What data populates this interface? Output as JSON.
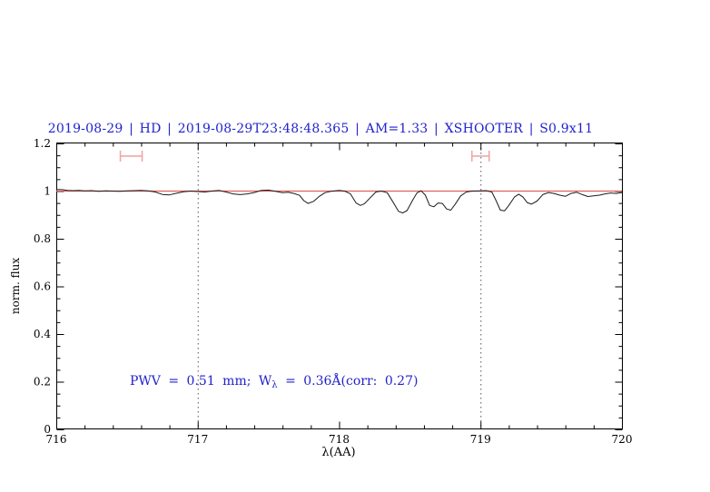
{
  "title": {
    "text": "2019-08-29 | HD | 2019-08-29T23:48:48.365 | AM=1.33 | XSHOOTER | S0.9x11",
    "color": "#2222cc"
  },
  "annotation": {
    "part1": "PWV = 0.51 mm; W",
    "sub": "λ",
    "part2": " = 0.36Å(corr: 0.27)",
    "color": "#2222cc"
  },
  "chart_data": {
    "type": "line",
    "title": "2019-08-29 | HD | 2019-08-29T23:48:48.365 | AM=1.33 | XSHOOTER | S0.9x11",
    "xlabel": "λ(AA)",
    "ylabel": "norm. flux",
    "xlim": [
      716,
      720
    ],
    "ylim": [
      0,
      1.2
    ],
    "x_tick_values": [
      716,
      717,
      718,
      719,
      720
    ],
    "x_tick_labels": [
      "716",
      "717",
      "718",
      "719",
      "720"
    ],
    "x_minor_step": 0.2,
    "y_tick_values": [
      0,
      0.2,
      0.4,
      0.6,
      0.8,
      1.0,
      1.2
    ],
    "y_tick_labels": [
      "0",
      "0.2",
      "0.4",
      "0.6",
      "0.8",
      "1",
      "1.2"
    ],
    "y_minor_step": 0.05,
    "grid": false,
    "reference_vlines": [
      717,
      719
    ],
    "continuum_level": 1.0,
    "colors": {
      "spectrum": "#1c1c1c",
      "continuum": "#e06060",
      "interval_marker": "#f2a6a6",
      "reference_line": "#555555"
    },
    "interval_markers": [
      {
        "x_center": 716.53,
        "half_width": 0.077,
        "flux": 1.147
      },
      {
        "x_center": 719.0,
        "half_width": 0.061,
        "flux": 1.147
      }
    ],
    "series": [
      {
        "name": "observed-spectrum",
        "points": [
          [
            716.0,
            1.007
          ],
          [
            716.04,
            1.006
          ],
          [
            716.08,
            1.003
          ],
          [
            716.12,
            1.002
          ],
          [
            716.16,
            1.003
          ],
          [
            716.2,
            1.001
          ],
          [
            716.25,
            1.002
          ],
          [
            716.3,
            0.999
          ],
          [
            716.35,
            1.001
          ],
          [
            716.4,
            1.0
          ],
          [
            716.45,
            0.999
          ],
          [
            716.5,
            1.001
          ],
          [
            716.55,
            1.002
          ],
          [
            716.6,
            1.003
          ],
          [
            716.65,
            1.001
          ],
          [
            716.7,
            0.996
          ],
          [
            716.75,
            0.986
          ],
          [
            716.8,
            0.984
          ],
          [
            716.85,
            0.991
          ],
          [
            716.9,
            0.997
          ],
          [
            716.95,
            1.0
          ],
          [
            717.0,
            0.998
          ],
          [
            717.05,
            0.996
          ],
          [
            717.1,
            1.0
          ],
          [
            717.15,
            1.003
          ],
          [
            717.2,
            0.996
          ],
          [
            717.25,
            0.988
          ],
          [
            717.3,
            0.985
          ],
          [
            717.35,
            0.988
          ],
          [
            717.4,
            0.994
          ],
          [
            717.45,
            1.003
          ],
          [
            717.5,
            1.004
          ],
          [
            717.55,
            0.999
          ],
          [
            717.6,
            0.993
          ],
          [
            717.64,
            0.995
          ],
          [
            717.68,
            0.99
          ],
          [
            717.72,
            0.982
          ],
          [
            717.75,
            0.96
          ],
          [
            717.78,
            0.948
          ],
          [
            717.82,
            0.957
          ],
          [
            717.86,
            0.978
          ],
          [
            717.9,
            0.993
          ],
          [
            717.94,
            0.999
          ],
          [
            718.0,
            1.003
          ],
          [
            718.04,
            1.0
          ],
          [
            718.08,
            0.988
          ],
          [
            718.12,
            0.95
          ],
          [
            718.15,
            0.94
          ],
          [
            718.18,
            0.947
          ],
          [
            718.22,
            0.972
          ],
          [
            718.26,
            0.996
          ],
          [
            718.3,
            1.0
          ],
          [
            718.34,
            0.993
          ],
          [
            718.38,
            0.955
          ],
          [
            718.42,
            0.915
          ],
          [
            718.45,
            0.908
          ],
          [
            718.48,
            0.918
          ],
          [
            718.52,
            0.962
          ],
          [
            718.55,
            0.992
          ],
          [
            718.58,
            1.001
          ],
          [
            718.61,
            0.983
          ],
          [
            718.64,
            0.94
          ],
          [
            718.67,
            0.934
          ],
          [
            718.7,
            0.95
          ],
          [
            718.73,
            0.948
          ],
          [
            718.76,
            0.925
          ],
          [
            718.79,
            0.92
          ],
          [
            718.82,
            0.944
          ],
          [
            718.86,
            0.98
          ],
          [
            718.9,
            0.996
          ],
          [
            718.94,
            1.0
          ],
          [
            719.0,
            1.001
          ],
          [
            719.04,
            1.002
          ],
          [
            719.08,
            0.996
          ],
          [
            719.11,
            0.96
          ],
          [
            719.14,
            0.92
          ],
          [
            719.17,
            0.917
          ],
          [
            719.2,
            0.94
          ],
          [
            719.24,
            0.975
          ],
          [
            719.27,
            0.987
          ],
          [
            719.3,
            0.975
          ],
          [
            719.33,
            0.952
          ],
          [
            719.36,
            0.945
          ],
          [
            719.4,
            0.958
          ],
          [
            719.44,
            0.985
          ],
          [
            719.48,
            0.994
          ],
          [
            719.52,
            0.99
          ],
          [
            719.56,
            0.983
          ],
          [
            719.6,
            0.978
          ],
          [
            719.64,
            0.99
          ],
          [
            719.68,
            0.995
          ],
          [
            719.72,
            0.985
          ],
          [
            719.76,
            0.977
          ],
          [
            719.8,
            0.98
          ],
          [
            719.84,
            0.983
          ],
          [
            719.88,
            0.988
          ],
          [
            719.92,
            0.992
          ],
          [
            719.96,
            0.99
          ],
          [
            720.0,
            0.994
          ]
        ]
      }
    ]
  }
}
